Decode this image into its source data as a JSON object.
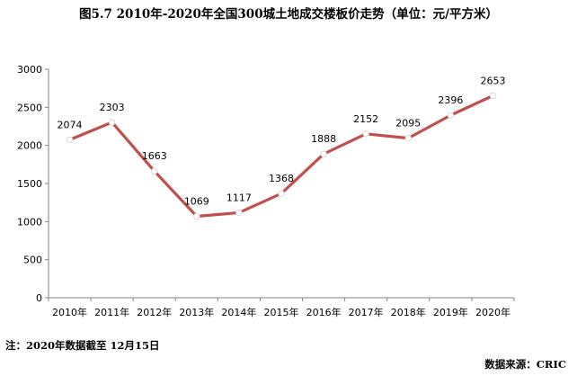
{
  "page": {
    "title": "图5.7 2010年-2020年全国300城土地成交楼板价走势（单位：元/平方米）",
    "note": "注：2020年数据截至 12月15日",
    "source": "数据来源：CRIC"
  },
  "chart_data": {
    "type": "line",
    "title": "图5.7 2010年-2020年全国300城土地成交楼板价走势（单位：元/平方米）",
    "categories": [
      "2010年",
      "2011年",
      "2012年",
      "2013年",
      "2014年",
      "2015年",
      "2016年",
      "2017年",
      "2018年",
      "2019年",
      "2020年"
    ],
    "series": [
      {
        "name": "楼板价",
        "values": [
          2074,
          2303,
          1663,
          1069,
          1117,
          1368,
          1888,
          2152,
          2095,
          2396,
          2653
        ],
        "color": "#c0504d"
      }
    ],
    "ylim": [
      0,
      3000
    ],
    "yticks": [
      0,
      500,
      1000,
      1500,
      2000,
      2500,
      3000
    ],
    "xlabel": "",
    "ylabel": "",
    "grid": false,
    "legend": "none"
  }
}
